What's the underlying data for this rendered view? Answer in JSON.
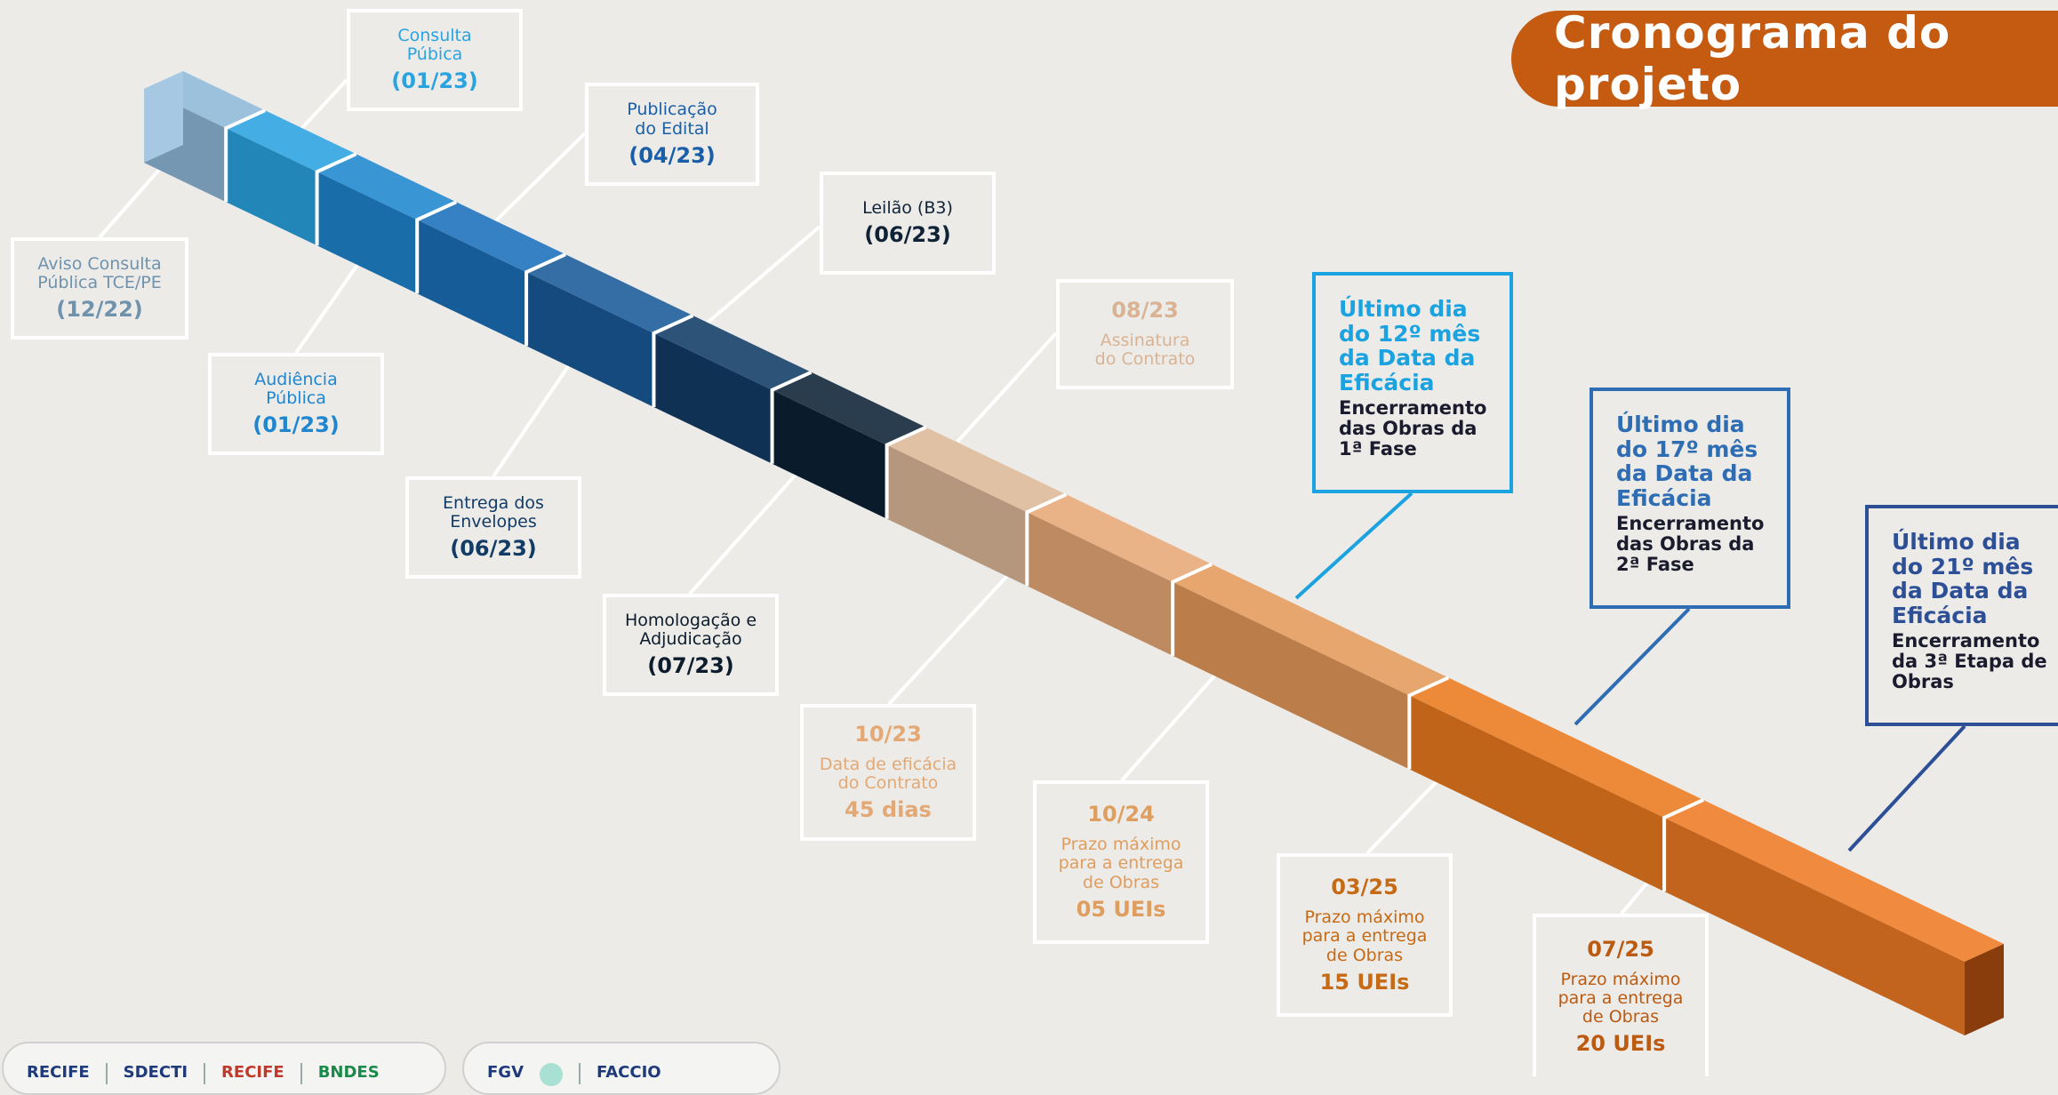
{
  "title": "Cronograma do projeto",
  "milestones": {
    "aviso": {
      "label": "Aviso Consulta Pública TCE/PE",
      "date": "(12/22)"
    },
    "consulta": {
      "label": "Consulta Púbica",
      "date": "(01/23)"
    },
    "audiencia": {
      "label": "Audiência Pública",
      "date": "(01/23)"
    },
    "publicacao": {
      "label": "Publicação do Edital",
      "date": "(04/23)"
    },
    "entrega": {
      "label": "Entrega dos Envelopes",
      "date": "(06/23)"
    },
    "leilao": {
      "label": "Leilão (B3)",
      "date": "(06/23)"
    },
    "homologacao": {
      "label": "Homologação e Adjudicação",
      "date": "(07/23)"
    },
    "assinatura": {
      "date": "08/23",
      "label": "Assinatura do Contrato"
    },
    "eficacia": {
      "date": "10/23",
      "label": "Data de eficácia do Contrato",
      "extra": "45 dias"
    },
    "prazo05": {
      "date": "10/24",
      "label": "Prazo máximo para a entrega de Obras",
      "extra": "05 UEIs"
    },
    "prazo15": {
      "date": "03/25",
      "label": "Prazo máximo para a entrega de Obras",
      "extra": "15 UEIs"
    },
    "prazo20": {
      "date": "07/25",
      "label": "Prazo máximo para a entrega de Obras",
      "extra": "20 UEIs"
    }
  },
  "callouts": {
    "fase1": {
      "heading": "Último dia do 12º mês da Data da Eficácia",
      "sub": "Encerramento das Obras da 1ª Fase",
      "color": "#1aa3e0"
    },
    "fase2": {
      "heading": "Último dia do 17º mês da Data da Eficácia",
      "sub": "Encerramento das Obras da 2ª Fase",
      "color": "#2e6db4"
    },
    "fase3": {
      "heading": "Último dia do 21º mês da Data da Eficácia",
      "sub": "Encerramento da 3ª Etapa de Obras",
      "color": "#2c4f96"
    }
  },
  "logos": {
    "left": [
      "RECIFE",
      "SDECTI",
      "RECIFE",
      "BNDES"
    ],
    "right": [
      "FGV",
      "FACCIO"
    ]
  },
  "colors": {
    "accent": "#c55a11",
    "segments": [
      "#8fb8d8",
      "#2aa3e0",
      "#1f86cf",
      "#1a70bb",
      "#185a98",
      "#123c66",
      "#0c2236",
      "#ddb898",
      "#e7a877",
      "#e49a5a",
      "#ea7a1e",
      "#ee7a24"
    ]
  }
}
